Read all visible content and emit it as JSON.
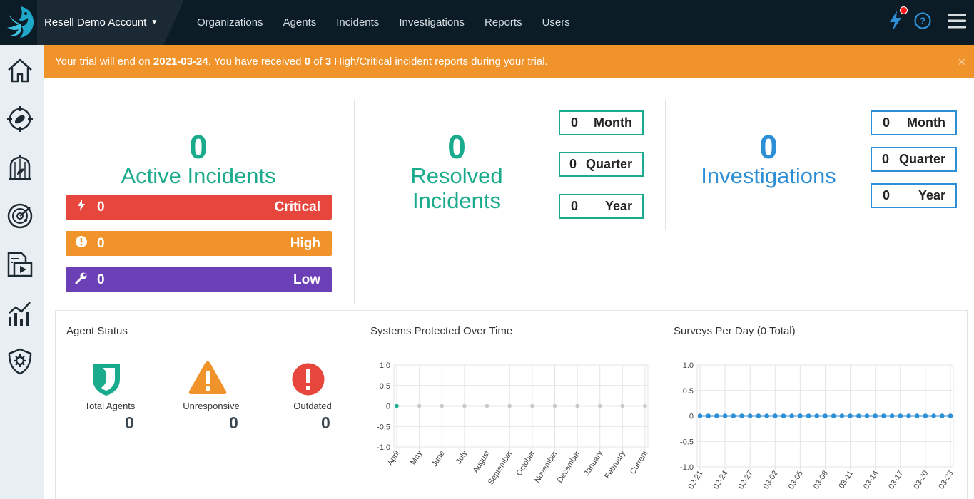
{
  "account": {
    "name": "Resell Demo Account"
  },
  "nav": {
    "items": [
      "Organizations",
      "Agents",
      "Incidents",
      "Investigations",
      "Reports",
      "Users"
    ]
  },
  "alert": {
    "prefix": "Your trial will end on ",
    "date": "2021-03-24",
    "middle": ". You have received ",
    "received": "0",
    "of": " of ",
    "total": "3",
    "suffix": " High/Critical incident reports during your trial.",
    "close": "×"
  },
  "active": {
    "count": "0",
    "label": "Active Incidents",
    "critical": {
      "value": "0",
      "label": "Critical"
    },
    "high": {
      "value": "0",
      "label": "High"
    },
    "low": {
      "value": "0",
      "label": "Low"
    }
  },
  "resolved": {
    "count": "0",
    "label_line1": "Resolved",
    "label_line2": "Incidents",
    "month": {
      "value": "0",
      "label": "Month"
    },
    "quarter": {
      "value": "0",
      "label": "Quarter"
    },
    "year": {
      "value": "0",
      "label": "Year"
    }
  },
  "investigations": {
    "count": "0",
    "label": "Investigations",
    "month": {
      "value": "0",
      "label": "Month"
    },
    "quarter": {
      "value": "0",
      "label": "Quarter"
    },
    "year": {
      "value": "0",
      "label": "Year"
    }
  },
  "agent_status": {
    "title": "Agent Status",
    "total": {
      "label": "Total Agents",
      "value": "0"
    },
    "unresponsive": {
      "label": "Unresponsive",
      "value": "0"
    },
    "outdated": {
      "label": "Outdated",
      "value": "0"
    }
  },
  "colors": {
    "green": "#1aaa8c",
    "blue": "#2d8fd5",
    "critical": "#e6463c",
    "high": "#f0932b",
    "low": "#6b3fb5",
    "nav": "#0b1c26"
  },
  "chart_data": [
    {
      "type": "line",
      "title": "Systems Protected Over Time",
      "categories": [
        "April",
        "May",
        "June",
        "July",
        "August",
        "September",
        "October",
        "November",
        "December",
        "January",
        "February",
        "Current"
      ],
      "series": [
        {
          "values": [
            0,
            0,
            0,
            0,
            0,
            0,
            0,
            0,
            0,
            0,
            0,
            0
          ]
        }
      ],
      "yticks": [
        "1.0",
        "0.5",
        "0",
        "-0.5",
        "-1.0"
      ],
      "ylim": [
        -1,
        1
      ],
      "grid": true
    },
    {
      "type": "line",
      "title": "Surveys Per Day (0 Total)",
      "categories": [
        "02-21",
        "02-22",
        "02-23",
        "02-24",
        "02-25",
        "02-26",
        "02-27",
        "02-28",
        "03-01",
        "03-02",
        "03-03",
        "03-04",
        "03-05",
        "03-06",
        "03-07",
        "03-08",
        "03-09",
        "03-10",
        "03-11",
        "03-12",
        "03-13",
        "03-14",
        "03-15",
        "03-16",
        "03-17",
        "03-18",
        "03-19",
        "03-20",
        "03-21",
        "03-22",
        "03-23"
      ],
      "tick_labels": [
        "02-21",
        "02-24",
        "02-27",
        "03-02",
        "03-05",
        "03-08",
        "03-11",
        "03-14",
        "03-17",
        "03-20",
        "03-23"
      ],
      "series": [
        {
          "values": [
            0,
            0,
            0,
            0,
            0,
            0,
            0,
            0,
            0,
            0,
            0,
            0,
            0,
            0,
            0,
            0,
            0,
            0,
            0,
            0,
            0,
            0,
            0,
            0,
            0,
            0,
            0,
            0,
            0,
            0,
            0
          ]
        }
      ],
      "yticks": [
        "1.0",
        "0.5",
        "0",
        "-0.5",
        "-1.0"
      ],
      "ylim": [
        -1,
        1
      ],
      "grid": true
    }
  ]
}
